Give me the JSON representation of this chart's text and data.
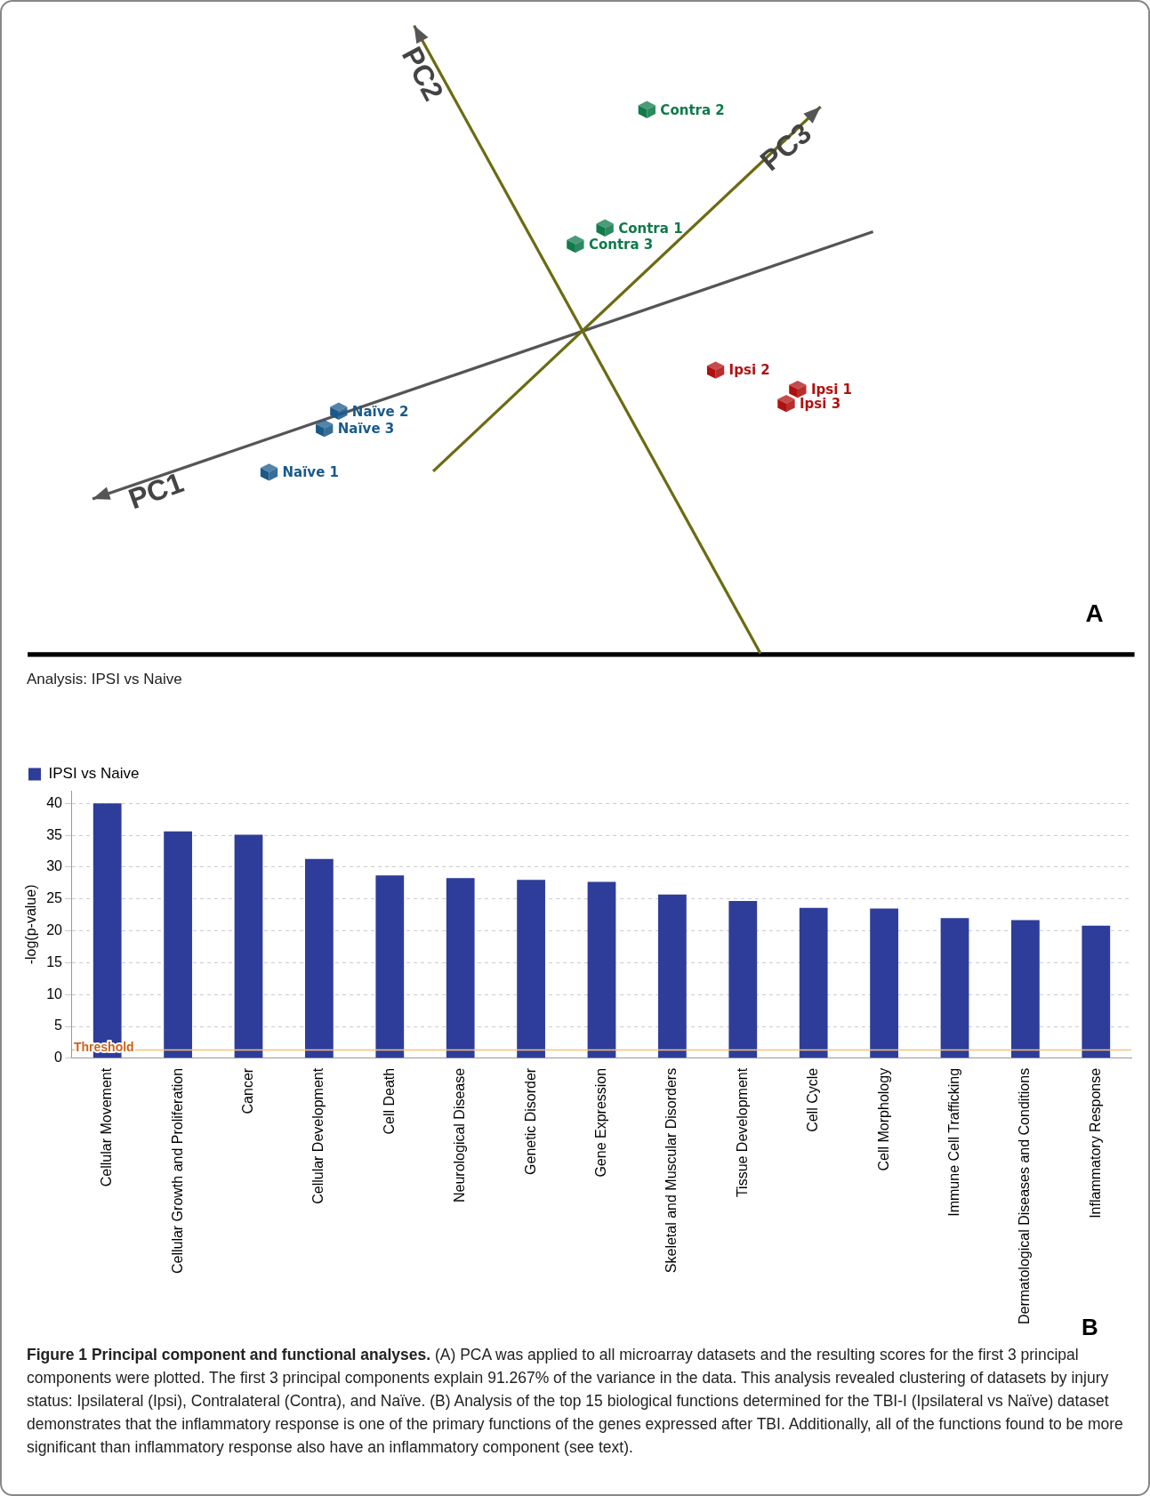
{
  "chart_data": [
    {
      "type": "other",
      "annotations": [
        "PC1",
        "PC2",
        "PC3",
        "Contra 2",
        "Contra 1",
        "Contra 3",
        "Ipsi 2",
        "Ipsi 1",
        "Ipsi 3",
        "Naïve 2",
        "Naïve 3",
        "Naïve 1",
        "A"
      ]
    },
    {
      "type": "bar",
      "title": "Analysis: IPSI vs Naive",
      "ylabel": "-log(p-value)",
      "categories": [
        "Cellular Movement",
        "Cellular Growth and Proliferation",
        "Cancer",
        "Cellular Development",
        "Cell Death",
        "Neurological Disease",
        "Genetic Disorder",
        "Gene Expression",
        "Skeletal and Muscular Disorders",
        "Tissue Development",
        "Cell Cycle",
        "Cell Morphology",
        "Immune Cell Trafficking",
        "Dermatological Diseases and Conditions",
        "Inflammatory Response"
      ],
      "series": [
        {
          "name": "IPSI vs Naive",
          "color": "#2e3d99",
          "values": [
            40.0,
            35.6,
            35.1,
            31.3,
            28.7,
            28.3,
            28.0,
            27.7,
            25.7,
            24.7,
            23.6,
            23.5,
            22.0,
            21.7,
            20.8
          ]
        }
      ],
      "ylim": [
        0,
        42
      ],
      "yticks": [
        0,
        5,
        10,
        15,
        20,
        25,
        30,
        35,
        40
      ],
      "grid": "y",
      "legend": "top left",
      "ref_lines": [
        {
          "axis": "y",
          "value": 1.3,
          "label": "Threshold",
          "color": "#f5c27a"
        }
      ],
      "annotations": [
        "B",
        "Figure 1 Principal component and functional analyses.",
        "(A) PCA was applied to all microarray datasets and the resulting scores for the first 3 principal components were plotted. The first 3 principal components explain 91.267% of the variance in the data. This analysis revealed clustering of datasets by injury status: Ipsilateral (Ipsi), Contralateral (Contra), and Naïve. (B) Analysis of the top 15 biological functions determined for the TBI-I (Ipsilateral vs Naïve) dataset demonstrates that the inflammatory response is one of the primary functions of the genes expressed after TBI. Additionally, all of the functions found to be more significant than inflammatory response also have an inflammatory component (see text)."
      ]
    }
  ]
}
